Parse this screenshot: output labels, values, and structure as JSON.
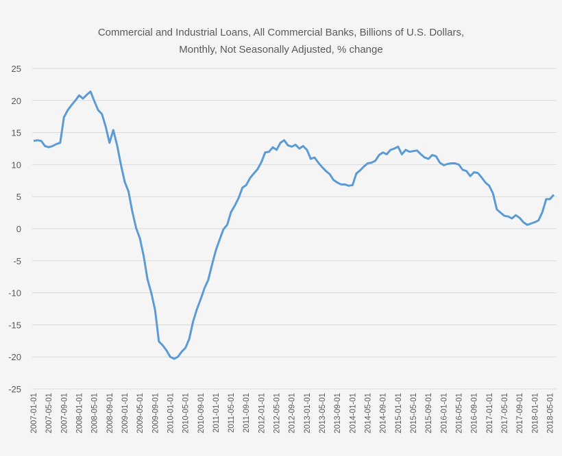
{
  "chart_data": {
    "type": "line",
    "title": [
      "Commercial and Industrial Loans, All Commercial Banks, Billions of U.S. Dollars,",
      "Monthly, Not Seasonally Adjusted, % change"
    ],
    "xlabel": "",
    "ylabel": "",
    "ylim": [
      -25,
      25
    ],
    "yticks": [
      25,
      20,
      15,
      10,
      5,
      0,
      -5,
      -10,
      -15,
      -20,
      -25
    ],
    "x_start": "2007-01",
    "x_end": "2018-06",
    "xtick_labels": [
      "2007-01-01",
      "2007-05-01",
      "2007-09-01",
      "2008-01-01",
      "2008-05-01",
      "2008-09-01",
      "2009-01-01",
      "2009-05-01",
      "2009-09-01",
      "2010-01-01",
      "2010-05-01",
      "2010-09-01",
      "2011-01-01",
      "2011-05-01",
      "2011-09-01",
      "2012-01-01",
      "2012-05-01",
      "2012-09-01",
      "2013-01-01",
      "2013-05-01",
      "2013-09-01",
      "2014-01-01",
      "2014-05-01",
      "2014-09-01",
      "2015-01-01",
      "2015-05-01",
      "2015-09-01",
      "2016-01-01",
      "2016-05-01",
      "2016-09-01",
      "2017-01-01",
      "2017-05-01",
      "2017-09-01",
      "2018-01-01",
      "2018-05-01"
    ],
    "grid": true,
    "line_color": "#5b9bd5",
    "series": [
      {
        "values": [
          13.7,
          13.8,
          13.7,
          12.9,
          12.7,
          12.9,
          13.2,
          13.4,
          17.4,
          18.5,
          19.3,
          20.0,
          20.8,
          20.3,
          20.9,
          21.4,
          19.9,
          18.5,
          17.9,
          15.9,
          13.4,
          15.4,
          13.0,
          10.0,
          7.3,
          5.8,
          2.7,
          0.1,
          -1.5,
          -4.3,
          -7.9,
          -10.0,
          -12.7,
          -17.6,
          -18.2,
          -19.0,
          -20.0,
          -20.3,
          -20.0,
          -19.2,
          -18.6,
          -17.2,
          -14.5,
          -12.6,
          -11.0,
          -9.3,
          -8.0,
          -5.6,
          -3.4,
          -1.7,
          -0.1,
          0.6,
          2.6,
          3.6,
          4.8,
          6.4,
          6.8,
          7.9,
          8.6,
          9.3,
          10.4,
          11.9,
          12.0,
          12.7,
          12.3,
          13.4,
          13.8,
          13.0,
          12.8,
          13.1,
          12.5,
          12.9,
          12.3,
          10.9,
          11.1,
          10.3,
          9.6,
          9.0,
          8.5,
          7.6,
          7.2,
          6.9,
          6.9,
          6.7,
          6.8,
          8.6,
          9.1,
          9.7,
          10.2,
          10.3,
          10.6,
          11.5,
          11.9,
          11.6,
          12.3,
          12.5,
          12.8,
          11.6,
          12.3,
          12.0,
          12.1,
          12.2,
          11.6,
          11.1,
          10.9,
          11.5,
          11.3,
          10.3,
          9.9,
          10.1,
          10.2,
          10.2,
          10.0,
          9.2,
          9.0,
          8.2,
          8.8,
          8.7,
          8.0,
          7.2,
          6.7,
          5.5,
          3.0,
          2.5,
          2.0,
          1.9,
          1.6,
          2.1,
          1.7,
          1.0,
          0.6,
          0.8,
          1.0,
          1.3,
          2.6,
          4.6,
          4.6,
          5.3
        ]
      }
    ]
  }
}
